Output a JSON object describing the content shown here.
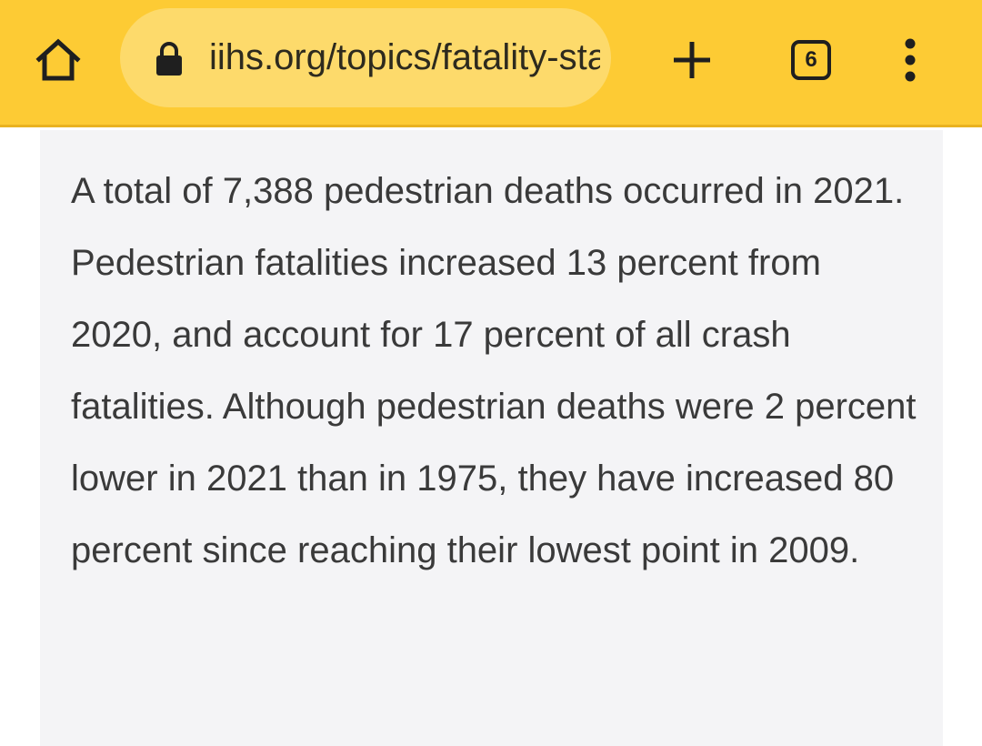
{
  "browser": {
    "url": "iihs.org/topics/fatality-statistics/detail/pedestrians",
    "tab_count": "6",
    "icons": {
      "home": "home-icon",
      "lock": "lock-icon",
      "new_tab": "plus-icon",
      "tabs": "tab-switcher-icon",
      "menu": "more-vert-icon"
    },
    "colors": {
      "toolbar": "#fdcb34",
      "url_bar": "#fdda6b"
    }
  },
  "article": {
    "paragraph": "A total of 7,388 pedestrian deaths occurred in 2021. Pedestrian fatalities increased 13 percent from 2020, and account for 17 percent of all crash fatalities. Although pedestrian deaths were 2 percent lower in 2021 than in 1975, they have increased 80 percent since reaching their lowest point in 2009."
  }
}
